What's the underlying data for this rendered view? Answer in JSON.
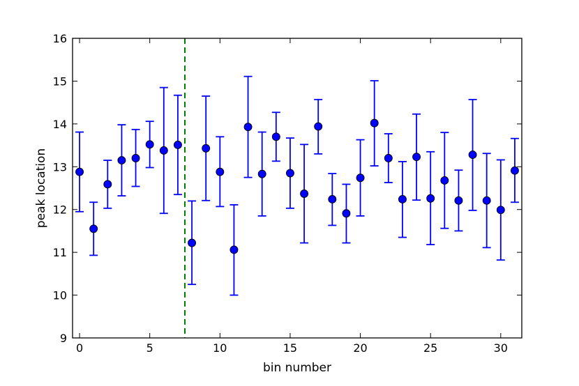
{
  "chart_data": {
    "type": "scatter",
    "xlabel": "bin number",
    "ylabel": "peak location",
    "xlim": [
      -0.5,
      31.5
    ],
    "ylim": [
      9,
      16
    ],
    "xticks": [
      "0",
      "5",
      "10",
      "15",
      "20",
      "25",
      "30"
    ],
    "yticks": [
      "9",
      "10",
      "11",
      "12",
      "13",
      "14",
      "15",
      "16"
    ],
    "grid": false,
    "marker_color": "#0000ff",
    "errorbar_color": "#0000ff",
    "vline": {
      "x": 7.5,
      "style": "dashed",
      "color": "#008000"
    },
    "points": [
      {
        "x": 0,
        "y": 12.88,
        "lo": 11.95,
        "hi": 13.81
      },
      {
        "x": 1,
        "y": 11.55,
        "lo": 10.93,
        "hi": 12.17
      },
      {
        "x": 2,
        "y": 12.59,
        "lo": 12.03,
        "hi": 13.15
      },
      {
        "x": 3,
        "y": 13.15,
        "lo": 12.32,
        "hi": 13.98
      },
      {
        "x": 4,
        "y": 13.2,
        "lo": 12.54,
        "hi": 13.87
      },
      {
        "x": 5,
        "y": 13.52,
        "lo": 12.98,
        "hi": 14.06
      },
      {
        "x": 6,
        "y": 13.38,
        "lo": 11.91,
        "hi": 14.85
      },
      {
        "x": 7,
        "y": 13.51,
        "lo": 12.35,
        "hi": 14.67
      },
      {
        "x": 8,
        "y": 11.22,
        "lo": 10.25,
        "hi": 12.2
      },
      {
        "x": 9,
        "y": 13.43,
        "lo": 12.21,
        "hi": 14.65
      },
      {
        "x": 10,
        "y": 12.88,
        "lo": 12.07,
        "hi": 13.7
      },
      {
        "x": 11,
        "y": 11.06,
        "lo": 10.0,
        "hi": 12.11
      },
      {
        "x": 12,
        "y": 13.93,
        "lo": 12.75,
        "hi": 15.11
      },
      {
        "x": 13,
        "y": 12.83,
        "lo": 11.85,
        "hi": 13.81
      },
      {
        "x": 14,
        "y": 13.7,
        "lo": 13.13,
        "hi": 14.27
      },
      {
        "x": 15,
        "y": 12.85,
        "lo": 12.03,
        "hi": 13.67
      },
      {
        "x": 16,
        "y": 12.37,
        "lo": 11.22,
        "hi": 13.52
      },
      {
        "x": 17,
        "y": 13.94,
        "lo": 13.3,
        "hi": 14.57
      },
      {
        "x": 18,
        "y": 12.24,
        "lo": 11.63,
        "hi": 12.84
      },
      {
        "x": 19,
        "y": 11.91,
        "lo": 11.22,
        "hi": 12.59
      },
      {
        "x": 20,
        "y": 12.74,
        "lo": 11.85,
        "hi": 13.63
      },
      {
        "x": 21,
        "y": 14.02,
        "lo": 13.02,
        "hi": 15.01
      },
      {
        "x": 22,
        "y": 13.2,
        "lo": 12.63,
        "hi": 13.77
      },
      {
        "x": 23,
        "y": 12.24,
        "lo": 11.35,
        "hi": 13.12
      },
      {
        "x": 24,
        "y": 13.23,
        "lo": 12.22,
        "hi": 14.23
      },
      {
        "x": 25,
        "y": 12.26,
        "lo": 11.18,
        "hi": 13.35
      },
      {
        "x": 26,
        "y": 12.68,
        "lo": 11.56,
        "hi": 13.8
      },
      {
        "x": 27,
        "y": 12.21,
        "lo": 11.5,
        "hi": 12.92
      },
      {
        "x": 28,
        "y": 13.28,
        "lo": 11.98,
        "hi": 14.57
      },
      {
        "x": 29,
        "y": 12.21,
        "lo": 11.11,
        "hi": 13.31
      },
      {
        "x": 30,
        "y": 11.99,
        "lo": 10.82,
        "hi": 13.16
      },
      {
        "x": 31,
        "y": 12.91,
        "lo": 12.17,
        "hi": 13.66
      }
    ]
  }
}
